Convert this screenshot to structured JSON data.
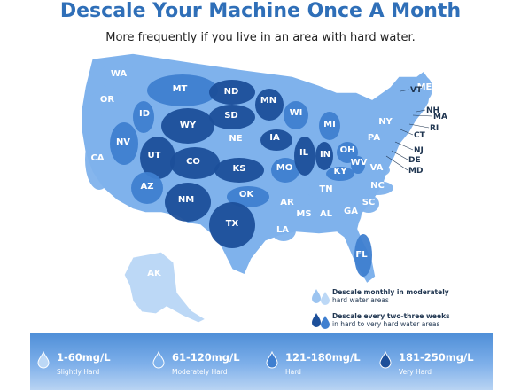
{
  "title": "Descale Your Machine Once A Month",
  "subtitle": "More frequently if you live in an area with hard water.",
  "colors": {
    "level1": "#bcd8f6",
    "level2": "#7fb2ec",
    "level3": "#3f7fd0",
    "level4": "#1c4f9a",
    "title": "#2f6fb8"
  },
  "states": [
    {
      "abbr": "WA",
      "level": 2
    },
    {
      "abbr": "OR",
      "level": 2
    },
    {
      "abbr": "CA",
      "level": 2
    },
    {
      "abbr": "NV",
      "level": 3
    },
    {
      "abbr": "ID",
      "level": 3
    },
    {
      "abbr": "MT",
      "level": 3
    },
    {
      "abbr": "WY",
      "level": 4
    },
    {
      "abbr": "UT",
      "level": 4
    },
    {
      "abbr": "AZ",
      "level": 3
    },
    {
      "abbr": "CO",
      "level": 4
    },
    {
      "abbr": "NM",
      "level": 4
    },
    {
      "abbr": "ND",
      "level": 4
    },
    {
      "abbr": "SD",
      "level": 4
    },
    {
      "abbr": "NE",
      "level": 2
    },
    {
      "abbr": "KS",
      "level": 4
    },
    {
      "abbr": "OK",
      "level": 3
    },
    {
      "abbr": "TX",
      "level": 4
    },
    {
      "abbr": "MN",
      "level": 4
    },
    {
      "abbr": "IA",
      "level": 4
    },
    {
      "abbr": "MO",
      "level": 3
    },
    {
      "abbr": "AR",
      "level": 2
    },
    {
      "abbr": "LA",
      "level": 2
    },
    {
      "abbr": "WI",
      "level": 3
    },
    {
      "abbr": "IL",
      "level": 4
    },
    {
      "abbr": "MI",
      "level": 3
    },
    {
      "abbr": "IN",
      "level": 4
    },
    {
      "abbr": "OH",
      "level": 3
    },
    {
      "abbr": "KY",
      "level": 3
    },
    {
      "abbr": "TN",
      "level": 2
    },
    {
      "abbr": "MS",
      "level": 2
    },
    {
      "abbr": "AL",
      "level": 2
    },
    {
      "abbr": "GA",
      "level": 2
    },
    {
      "abbr": "FL",
      "level": 3
    },
    {
      "abbr": "SC",
      "level": 2
    },
    {
      "abbr": "NC",
      "level": 2
    },
    {
      "abbr": "VA",
      "level": 2
    },
    {
      "abbr": "WV",
      "level": 3
    },
    {
      "abbr": "PA",
      "level": 2
    },
    {
      "abbr": "NY",
      "level": 2
    },
    {
      "abbr": "VT",
      "level": 1
    },
    {
      "abbr": "NH",
      "level": 1
    },
    {
      "abbr": "ME",
      "level": 2
    },
    {
      "abbr": "MA",
      "level": 1
    },
    {
      "abbr": "RI",
      "level": 1
    },
    {
      "abbr": "CT",
      "level": 1
    },
    {
      "abbr": "NJ",
      "level": 2
    },
    {
      "abbr": "DE",
      "level": 2
    },
    {
      "abbr": "MD",
      "level": 2
    },
    {
      "abbr": "AK",
      "level": 2
    }
  ],
  "callout_labels": [
    "VT",
    "NH",
    "MA",
    "RI",
    "CT",
    "NJ",
    "DE",
    "MD"
  ],
  "legend": [
    {
      "head": "Descale monthly in moderately",
      "body": "hard water areas"
    },
    {
      "head": "Descale every two-three weeks",
      "body": "in hard to very hard water areas"
    }
  ],
  "scale": [
    {
      "range": "1-60mg/L",
      "label": "Slightly Hard",
      "level": 1
    },
    {
      "range": "61-120mg/L",
      "label": "Moderately Hard",
      "level": 2
    },
    {
      "range": "121-180mg/L",
      "label": "Hard",
      "level": 3
    },
    {
      "range": "181-250mg/L",
      "label": "Very Hard",
      "level": 4
    }
  ]
}
